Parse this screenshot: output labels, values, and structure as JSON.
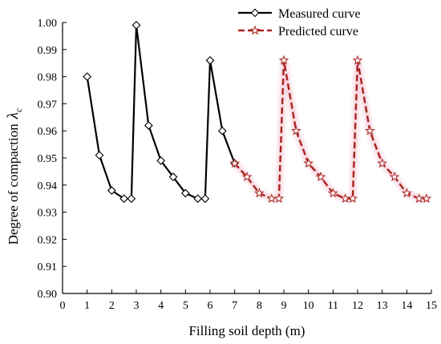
{
  "chart_data": {
    "type": "line",
    "xlabel": "Filling soil depth (m)",
    "ylabel": "Degree of compaction",
    "ylabel_symbol": "λ",
    "ylabel_subscript": "c",
    "xlim": [
      0,
      15
    ],
    "ylim": [
      0.9,
      1.0
    ],
    "xticks": [
      "0",
      "1",
      "2",
      "3",
      "4",
      "5",
      "6",
      "7",
      "8",
      "9",
      "10",
      "11",
      "12",
      "13",
      "14",
      "15"
    ],
    "yticks": [
      "0.90",
      "0.91",
      "0.92",
      "0.93",
      "0.94",
      "0.95",
      "0.96",
      "0.97",
      "0.98",
      "0.99",
      "1.00"
    ],
    "legend_position": "top-right",
    "grid": false,
    "series": [
      {
        "name": "Measured curve",
        "color": "#000000",
        "marker": "diamond",
        "line": "solid",
        "points": [
          [
            1.0,
            0.98
          ],
          [
            1.5,
            0.951
          ],
          [
            2.0,
            0.938
          ],
          [
            2.5,
            0.935
          ],
          [
            2.8,
            0.935
          ],
          [
            3.0,
            0.999
          ],
          [
            3.5,
            0.962
          ],
          [
            4.0,
            0.949
          ],
          [
            4.5,
            0.943
          ],
          [
            5.0,
            0.937
          ],
          [
            5.5,
            0.935
          ],
          [
            5.8,
            0.935
          ],
          [
            6.0,
            0.986
          ],
          [
            6.5,
            0.96
          ],
          [
            7.0,
            0.948
          ]
        ]
      },
      {
        "name": "Predicted curve",
        "color": "#a8231f",
        "marker": "star",
        "line": "dashed",
        "points": [
          [
            7.0,
            0.948
          ],
          [
            7.5,
            0.943
          ],
          [
            8.0,
            0.937
          ],
          [
            8.5,
            0.935
          ],
          [
            8.8,
            0.935
          ],
          [
            9.0,
            0.986
          ],
          [
            9.5,
            0.96
          ],
          [
            10.0,
            0.948
          ],
          [
            10.5,
            0.943
          ],
          [
            11.0,
            0.937
          ],
          [
            11.5,
            0.935
          ],
          [
            11.8,
            0.935
          ],
          [
            12.0,
            0.986
          ],
          [
            12.5,
            0.96
          ],
          [
            13.0,
            0.948
          ],
          [
            13.5,
            0.943
          ],
          [
            14.0,
            0.937
          ],
          [
            14.5,
            0.935
          ],
          [
            14.8,
            0.935
          ]
        ]
      }
    ]
  }
}
